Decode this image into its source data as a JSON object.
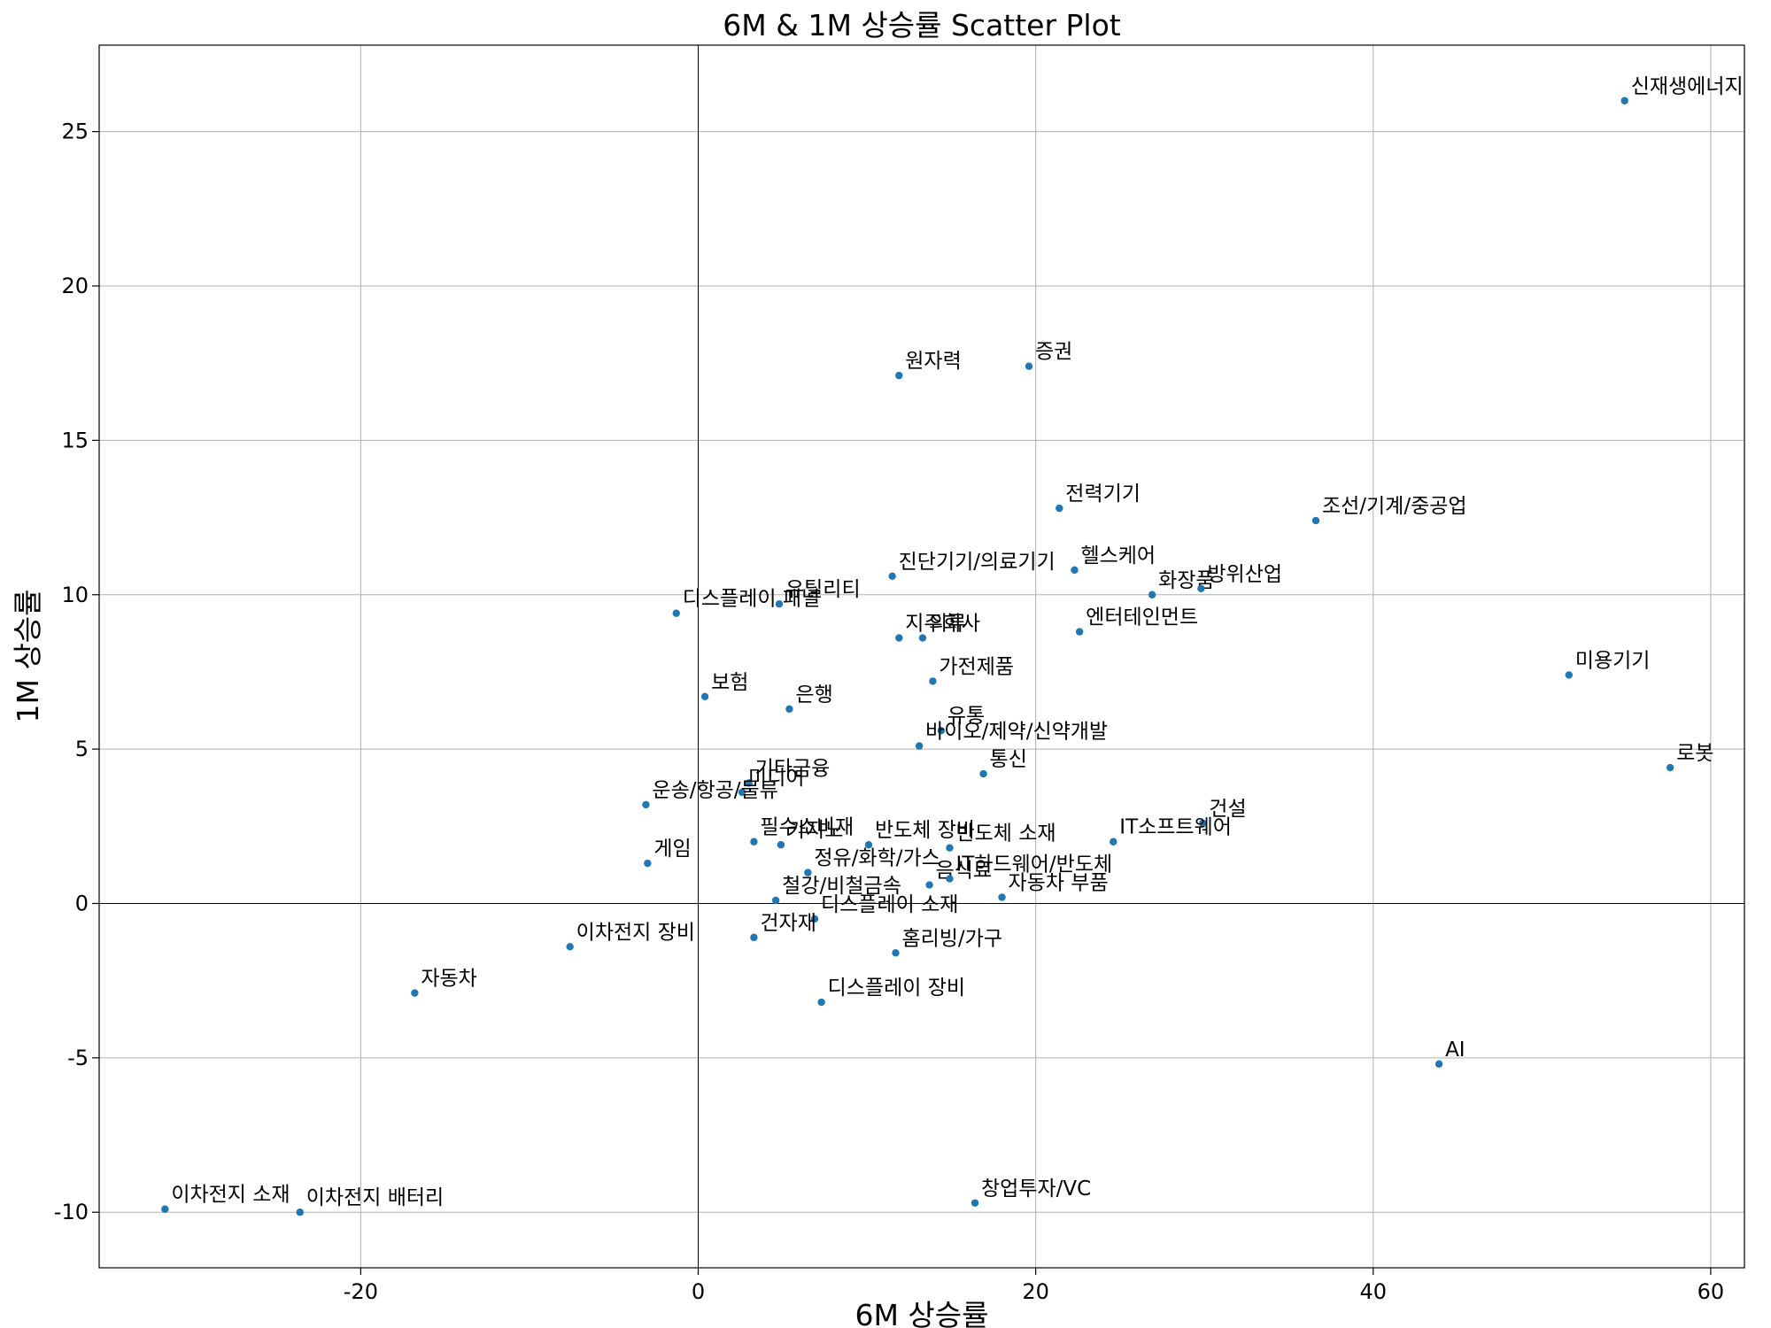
{
  "chart_data": {
    "type": "scatter",
    "title": "6M & 1M 상승률 Scatter Plot",
    "xlabel": "6M 상승률",
    "ylabel": "1M 상승률",
    "xlim": [
      -35.5,
      62
    ],
    "ylim": [
      -11.8,
      27.8
    ],
    "xticks": [
      -20,
      0,
      20,
      40,
      60
    ],
    "yticks": [
      -10,
      -5,
      0,
      5,
      10,
      15,
      20,
      25
    ],
    "grid": true,
    "zero_lines": true,
    "point_color": "#1f77b4",
    "points": [
      {
        "label": "신재생에너지",
        "x": 54.9,
        "y": 26.0
      },
      {
        "label": "원자력",
        "x": 11.9,
        "y": 17.1
      },
      {
        "label": "증권",
        "x": 19.6,
        "y": 17.4
      },
      {
        "label": "전력기기",
        "x": 21.4,
        "y": 12.8
      },
      {
        "label": "조선/기계/중공업",
        "x": 36.6,
        "y": 12.4
      },
      {
        "label": "진단기기/의료기기",
        "x": 11.5,
        "y": 10.6
      },
      {
        "label": "헬스케어",
        "x": 22.3,
        "y": 10.8
      },
      {
        "label": "화장품",
        "x": 26.9,
        "y": 10.0
      },
      {
        "label": "방위산업",
        "x": 29.8,
        "y": 10.2
      },
      {
        "label": "디스플레이 패널",
        "x": -1.3,
        "y": 9.4
      },
      {
        "label": "유틸리티",
        "x": 4.8,
        "y": 9.7
      },
      {
        "label": "지주회사",
        "x": 11.9,
        "y": 8.6
      },
      {
        "label": "의류",
        "x": 13.3,
        "y": 8.6
      },
      {
        "label": "엔터테인먼트",
        "x": 22.6,
        "y": 8.8
      },
      {
        "label": "가전제품",
        "x": 13.9,
        "y": 7.2
      },
      {
        "label": "미용기기",
        "x": 51.6,
        "y": 7.4
      },
      {
        "label": "보험",
        "x": 0.4,
        "y": 6.7
      },
      {
        "label": "은행",
        "x": 5.4,
        "y": 6.3
      },
      {
        "label": "유통",
        "x": 14.4,
        "y": 5.6
      },
      {
        "label": "바이오/제약/신약개발",
        "x": 13.1,
        "y": 5.1
      },
      {
        "label": "로봇",
        "x": 57.6,
        "y": 4.4
      },
      {
        "label": "통신",
        "x": 16.9,
        "y": 4.2
      },
      {
        "label": "기타금융",
        "x": 3.0,
        "y": 3.9
      },
      {
        "label": "미디어",
        "x": 2.6,
        "y": 3.6
      },
      {
        "label": "운송/항공/물류",
        "x": -3.1,
        "y": 3.2
      },
      {
        "label": "건설",
        "x": 29.9,
        "y": 2.6
      },
      {
        "label": "필수소비재",
        "x": 3.3,
        "y": 2.0
      },
      {
        "label": "카지노",
        "x": 4.9,
        "y": 1.9
      },
      {
        "label": "반도체 장비",
        "x": 10.1,
        "y": 1.9
      },
      {
        "label": "반도체 소재",
        "x": 14.9,
        "y": 1.8
      },
      {
        "label": "IT소프트웨어",
        "x": 24.6,
        "y": 2.0
      },
      {
        "label": "게임",
        "x": -3.0,
        "y": 1.3
      },
      {
        "label": "정유/화학/가스",
        "x": 6.5,
        "y": 1.0
      },
      {
        "label": "음식료",
        "x": 13.7,
        "y": 0.6
      },
      {
        "label": "IT하드웨어/반도체",
        "x": 14.9,
        "y": 0.8
      },
      {
        "label": "자동차 부품",
        "x": 18.0,
        "y": 0.2
      },
      {
        "label": "철강/비철금속",
        "x": 4.6,
        "y": 0.1
      },
      {
        "label": "디스플레이 소재",
        "x": 6.9,
        "y": -0.5
      },
      {
        "label": "건자재",
        "x": 3.3,
        "y": -1.1
      },
      {
        "label": "홈리빙/가구",
        "x": 11.7,
        "y": -1.6
      },
      {
        "label": "이차전지 장비",
        "x": -7.6,
        "y": -1.4
      },
      {
        "label": "자동차",
        "x": -16.8,
        "y": -2.9
      },
      {
        "label": "디스플레이 장비",
        "x": 7.3,
        "y": -3.2
      },
      {
        "label": "AI",
        "x": 43.9,
        "y": -5.2
      },
      {
        "label": "창업투자/VC",
        "x": 16.4,
        "y": -9.7
      },
      {
        "label": "이차전지 소재",
        "x": -31.6,
        "y": -9.9
      },
      {
        "label": "이차전지 배터리",
        "x": -23.6,
        "y": -10.0
      }
    ]
  }
}
